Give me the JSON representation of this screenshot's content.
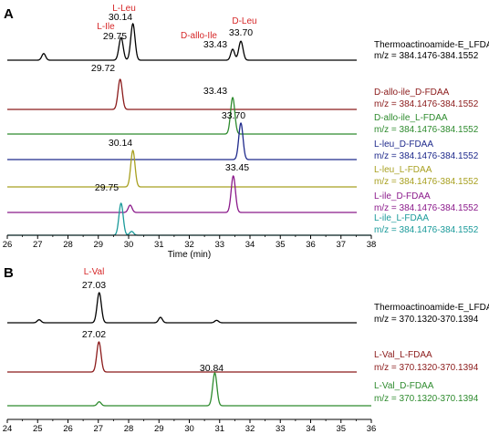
{
  "chart_data": [
    {
      "type": "line",
      "panel": "A",
      "xlabel": "Time (min)",
      "xlim": [
        26,
        38
      ],
      "xticks": [
        26,
        27,
        28,
        29,
        30,
        31,
        32,
        33,
        34,
        35,
        36,
        37,
        38
      ],
      "compound_labels": [
        {
          "text": "L-Leu",
          "color": "#d62728"
        },
        {
          "text": "L-Ile",
          "color": "#d62728"
        },
        {
          "text": "D-allo-Ile",
          "color": "#d62728"
        },
        {
          "text": "D-Leu",
          "color": "#d62728"
        }
      ],
      "series": [
        {
          "name": "Thermoactinoamide-E_LFDAA",
          "mz": "m/z = 384.1476-384.1552",
          "color": "#000000",
          "peaks": [
            {
              "x": 27.2,
              "h": 0.18
            },
            {
              "x": 29.75,
              "h": 0.62,
              "label": "29.75"
            },
            {
              "x": 30.14,
              "h": 1.0,
              "label": "30.14"
            },
            {
              "x": 33.43,
              "h": 0.3,
              "label": "33.43"
            },
            {
              "x": 33.7,
              "h": 0.52,
              "label": "33.70"
            }
          ]
        },
        {
          "name": "D-allo-ile_D-FDAA",
          "mz": "m/z = 384.1476-384.1552",
          "color": "#8b1a1a",
          "peaks": [
            {
              "x": 29.72,
              "h": 1.0,
              "label": "29.72"
            }
          ]
        },
        {
          "name": "D-allo-ile_L-FDAA",
          "mz": "m/z = 384.1476-384.1552",
          "color": "#2e8b2e",
          "peaks": [
            {
              "x": 33.43,
              "h": 1.0,
              "label": "33.43"
            }
          ]
        },
        {
          "name": "L-leu_D-FDAA",
          "mz": "m/z = 384.1476-384.1552",
          "color": "#1f2a8c",
          "peaks": [
            {
              "x": 33.7,
              "h": 1.0,
              "label": "33.70"
            }
          ]
        },
        {
          "name": "L-leu_L-FDAA",
          "mz": "m/z = 384.1476-384.1552",
          "color": "#a8a020",
          "peaks": [
            {
              "x": 30.14,
              "h": 1.0,
              "label": "30.14"
            }
          ]
        },
        {
          "name": "L-ile_D-FDAA",
          "mz": "m/z = 384.1476-384.1552",
          "color": "#8b1a8b",
          "peaks": [
            {
              "x": 30.05,
              "h": 0.2
            },
            {
              "x": 33.45,
              "h": 1.0,
              "label": "33.45"
            }
          ]
        },
        {
          "name": "L-ile_L-FDAA",
          "mz": "m/z = 384.1476-384.1552",
          "color": "#1a9a9a",
          "peaks": [
            {
              "x": 29.75,
              "h": 1.0,
              "label": "29.75"
            },
            {
              "x": 30.1,
              "h": 0.12
            }
          ]
        }
      ]
    },
    {
      "type": "line",
      "panel": "B",
      "xlabel": "Time (min)",
      "xlim": [
        24,
        36
      ],
      "xticks": [
        24,
        25,
        26,
        27,
        28,
        29,
        30,
        31,
        32,
        33,
        34,
        35,
        36
      ],
      "compound_labels": [
        {
          "text": "L-Val",
          "color": "#d62728"
        }
      ],
      "series": [
        {
          "name": "Thermoactinoamide-E_LFDAA",
          "mz": "m/z = 370.1320-370.1394",
          "color": "#000000",
          "peaks": [
            {
              "x": 25.05,
              "h": 0.1
            },
            {
              "x": 27.03,
              "h": 1.0,
              "label": "27.03"
            },
            {
              "x": 29.05,
              "h": 0.18
            },
            {
              "x": 30.9,
              "h": 0.08
            }
          ]
        },
        {
          "name": "L-Val_L-FDAA",
          "mz": "m/z = 370.1320-370.1394",
          "color": "#8b1a1a",
          "peaks": [
            {
              "x": 27.02,
              "h": 1.0,
              "label": "27.02"
            }
          ]
        },
        {
          "name": "L-Val_D-FDAA",
          "mz": "m/z = 370.1320-370.1394",
          "color": "#2e8b2e",
          "peaks": [
            {
              "x": 27.03,
              "h": 0.12
            },
            {
              "x": 30.84,
              "h": 1.0,
              "label": "30.84"
            }
          ]
        }
      ]
    }
  ]
}
